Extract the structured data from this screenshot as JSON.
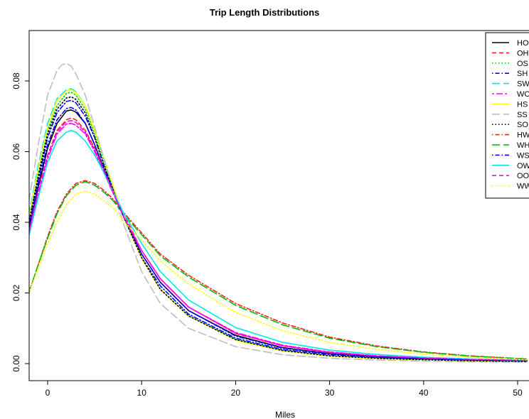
{
  "chart_data": {
    "type": "line",
    "title": "Trip Length Distributions",
    "xlabel": "Miles",
    "ylabel": "",
    "xlim": [
      -2,
      51
    ],
    "ylim": [
      -0.004,
      0.094
    ],
    "xticks": [
      0,
      10,
      20,
      30,
      40,
      50
    ],
    "yticks": [
      0.0,
      0.02,
      0.04,
      0.06,
      0.08
    ],
    "xtick_labels": [
      "0",
      "10",
      "20",
      "30",
      "40",
      "50"
    ],
    "ytick_labels": [
      "0.00",
      "0.02",
      "0.04",
      "0.06",
      "0.08"
    ],
    "legend": {
      "placement": "top-right"
    },
    "series": [
      {
        "name": "HO",
        "color": "#000000",
        "dash": "solid",
        "x": [
          -2,
          -1,
          0,
          1,
          2,
          2.5,
          3,
          4,
          5,
          6,
          8,
          10,
          12,
          15,
          20,
          25,
          30,
          35,
          40,
          45,
          51
        ],
        "y": [
          0.038,
          0.05,
          0.061,
          0.068,
          0.0715,
          0.0718,
          0.0712,
          0.068,
          0.062,
          0.055,
          0.042,
          0.031,
          0.023,
          0.015,
          0.008,
          0.0045,
          0.0028,
          0.0019,
          0.0014,
          0.0011,
          0.0008
        ]
      },
      {
        "name": "OH",
        "color": "#ff2020",
        "dash": "dashed",
        "x": [
          -2,
          -1,
          0,
          1,
          2,
          2.5,
          3,
          4,
          5,
          6,
          8,
          10,
          12,
          15,
          20,
          25,
          30,
          35,
          40,
          45,
          51
        ],
        "y": [
          0.037,
          0.049,
          0.059,
          0.066,
          0.069,
          0.0695,
          0.069,
          0.066,
          0.061,
          0.055,
          0.043,
          0.032,
          0.024,
          0.016,
          0.0085,
          0.005,
          0.0031,
          0.0021,
          0.0015,
          0.0011,
          0.0008
        ]
      },
      {
        "name": "OS",
        "color": "#00cc00",
        "dash": "dotted",
        "x": [
          -2,
          -1,
          0,
          1,
          2,
          2.5,
          3,
          4,
          5,
          6,
          8,
          10,
          12,
          15,
          20,
          25,
          30,
          35,
          40,
          45,
          51
        ],
        "y": [
          0.041,
          0.054,
          0.066,
          0.073,
          0.0765,
          0.0768,
          0.076,
          0.072,
          0.065,
          0.057,
          0.042,
          0.03,
          0.021,
          0.0135,
          0.0068,
          0.0037,
          0.0022,
          0.0015,
          0.001,
          0.0008,
          0.0006
        ]
      },
      {
        "name": "SH",
        "color": "#0000ff",
        "dash": "dashdot",
        "x": [
          -2,
          -1,
          0,
          1,
          2,
          2.5,
          3,
          4,
          5,
          6,
          8,
          10,
          12,
          15,
          20,
          25,
          30,
          35,
          40,
          45,
          51
        ],
        "y": [
          0.04,
          0.052,
          0.064,
          0.071,
          0.0742,
          0.0745,
          0.0738,
          0.07,
          0.064,
          0.056,
          0.042,
          0.03,
          0.022,
          0.014,
          0.0072,
          0.004,
          0.0025,
          0.0017,
          0.0012,
          0.0009,
          0.0007
        ]
      },
      {
        "name": "SW",
        "color": "#00e5ee",
        "dash": "longdash",
        "x": [
          -2,
          -1,
          0,
          1,
          2,
          2.5,
          3,
          4,
          5,
          6,
          8,
          10,
          12,
          15,
          20,
          25,
          30,
          35,
          40,
          45,
          51
        ],
        "y": [
          0.042,
          0.056,
          0.068,
          0.075,
          0.0775,
          0.0778,
          0.077,
          0.073,
          0.066,
          0.058,
          0.042,
          0.03,
          0.021,
          0.0135,
          0.0068,
          0.0037,
          0.0022,
          0.0014,
          0.001,
          0.0007,
          0.0005
        ]
      },
      {
        "name": "WO",
        "color": "#ff00ff",
        "dash": "twodash",
        "x": [
          -2,
          -1,
          0,
          1,
          2,
          2.5,
          3,
          4,
          5,
          6,
          8,
          10,
          12,
          15,
          20,
          25,
          30,
          35,
          40,
          45,
          51
        ],
        "y": [
          0.037,
          0.048,
          0.058,
          0.065,
          0.0678,
          0.068,
          0.0675,
          0.065,
          0.06,
          0.054,
          0.042,
          0.032,
          0.024,
          0.016,
          0.0088,
          0.0052,
          0.0033,
          0.0022,
          0.0016,
          0.0012,
          0.0009
        ]
      },
      {
        "name": "HS",
        "color": "#ffff00",
        "dash": "solid",
        "x": [
          -2,
          -1,
          0,
          1,
          2,
          2.5,
          3,
          4,
          5,
          6,
          8,
          10,
          12,
          15,
          20,
          25,
          30,
          35,
          40,
          45,
          51
        ],
        "y": [
          0.041,
          0.055,
          0.067,
          0.0745,
          0.0772,
          0.0775,
          0.0768,
          0.073,
          0.066,
          0.058,
          0.042,
          0.03,
          0.021,
          0.0135,
          0.0066,
          0.0036,
          0.0021,
          0.0014,
          0.001,
          0.0007,
          0.0005
        ]
      },
      {
        "name": "SS",
        "color": "#bebebe",
        "dash": "longdash",
        "x": [
          -2,
          -1,
          0,
          1,
          1.5,
          2,
          2.5,
          3,
          4,
          5,
          6,
          8,
          10,
          12,
          15,
          20,
          25,
          30,
          35,
          40,
          45,
          51
        ],
        "y": [
          0.046,
          0.062,
          0.076,
          0.083,
          0.0845,
          0.085,
          0.0842,
          0.082,
          0.076,
          0.067,
          0.058,
          0.04,
          0.026,
          0.017,
          0.01,
          0.0048,
          0.0025,
          0.0015,
          0.001,
          0.0007,
          0.0005,
          0.0004
        ]
      },
      {
        "name": "SO",
        "color": "#000000",
        "dash": "dotted",
        "x": [
          -2,
          -1,
          0,
          1,
          2,
          2.5,
          3,
          4,
          5,
          6,
          8,
          10,
          12,
          15,
          20,
          25,
          30,
          35,
          40,
          45,
          51
        ],
        "y": [
          0.04,
          0.053,
          0.065,
          0.072,
          0.0752,
          0.0755,
          0.0748,
          0.071,
          0.064,
          0.056,
          0.042,
          0.03,
          0.021,
          0.0135,
          0.0068,
          0.0037,
          0.0022,
          0.0015,
          0.0011,
          0.0008,
          0.0006
        ]
      },
      {
        "name": "HW",
        "color": "#ff2020",
        "dash": "dashdot",
        "x": [
          -2,
          -1,
          0,
          1,
          2,
          3,
          4,
          5,
          6,
          7,
          8,
          10,
          12,
          15,
          20,
          25,
          30,
          35,
          40,
          45,
          51
        ],
        "y": [
          0.02,
          0.028,
          0.036,
          0.043,
          0.048,
          0.051,
          0.0518,
          0.051,
          0.049,
          0.0465,
          0.043,
          0.037,
          0.031,
          0.025,
          0.017,
          0.0115,
          0.0075,
          0.005,
          0.0033,
          0.0022,
          0.0013
        ]
      },
      {
        "name": "WH",
        "color": "#00bb00",
        "dash": "longdash",
        "x": [
          -2,
          -1,
          0,
          1,
          2,
          3,
          4,
          5,
          6,
          7,
          8,
          10,
          12,
          15,
          20,
          25,
          30,
          35,
          40,
          45,
          51
        ],
        "y": [
          0.02,
          0.028,
          0.0355,
          0.0425,
          0.0475,
          0.0505,
          0.0515,
          0.0505,
          0.0485,
          0.046,
          0.0425,
          0.0365,
          0.0305,
          0.0245,
          0.0165,
          0.011,
          0.0072,
          0.0048,
          0.0032,
          0.0021,
          0.0013
        ]
      },
      {
        "name": "WS",
        "color": "#0000ff",
        "dash": "dashdot",
        "x": [
          -2,
          -1,
          0,
          1,
          2,
          2.5,
          3,
          4,
          5,
          6,
          8,
          10,
          12,
          15,
          20,
          25,
          30,
          35,
          40,
          45,
          51
        ],
        "y": [
          0.039,
          0.051,
          0.062,
          0.069,
          0.0722,
          0.0725,
          0.0718,
          0.068,
          0.062,
          0.055,
          0.042,
          0.031,
          0.023,
          0.015,
          0.0078,
          0.0044,
          0.0028,
          0.0019,
          0.0014,
          0.001,
          0.0008
        ]
      },
      {
        "name": "OW",
        "color": "#00e5ee",
        "dash": "solid",
        "x": [
          -2,
          -1,
          0,
          1,
          2,
          2.5,
          3,
          4,
          5,
          6,
          8,
          10,
          12,
          15,
          20,
          25,
          30,
          35,
          40,
          45,
          51
        ],
        "y": [
          0.036,
          0.047,
          0.057,
          0.063,
          0.0655,
          0.066,
          0.0655,
          0.063,
          0.059,
          0.054,
          0.043,
          0.034,
          0.026,
          0.018,
          0.0102,
          0.006,
          0.0038,
          0.0026,
          0.0018,
          0.0013,
          0.001
        ]
      },
      {
        "name": "OO",
        "color": "#ff00ff",
        "dash": "dashed",
        "x": [
          -2,
          -1,
          0,
          1,
          2,
          2.5,
          3,
          4,
          5,
          6,
          8,
          10,
          12,
          15,
          20,
          25,
          30,
          35,
          40,
          45,
          51
        ],
        "y": [
          0.037,
          0.049,
          0.059,
          0.0655,
          0.0685,
          0.0688,
          0.0683,
          0.0655,
          0.0605,
          0.0545,
          0.042,
          0.032,
          0.024,
          0.016,
          0.0086,
          0.005,
          0.0032,
          0.0022,
          0.0016,
          0.0012,
          0.0009
        ]
      },
      {
        "name": "WW",
        "color": "#ffff00",
        "dash": "dotted",
        "x": [
          -2,
          -1,
          0,
          1,
          2,
          3,
          4,
          5,
          6,
          7,
          8,
          10,
          12,
          15,
          20,
          25,
          30,
          35,
          40,
          45,
          51
        ],
        "y": [
          0.02,
          0.027,
          0.034,
          0.04,
          0.045,
          0.048,
          0.0488,
          0.048,
          0.046,
          0.044,
          0.0405,
          0.035,
          0.029,
          0.0225,
          0.0145,
          0.0093,
          0.006,
          0.004,
          0.0027,
          0.0018,
          0.0011
        ]
      }
    ]
  }
}
